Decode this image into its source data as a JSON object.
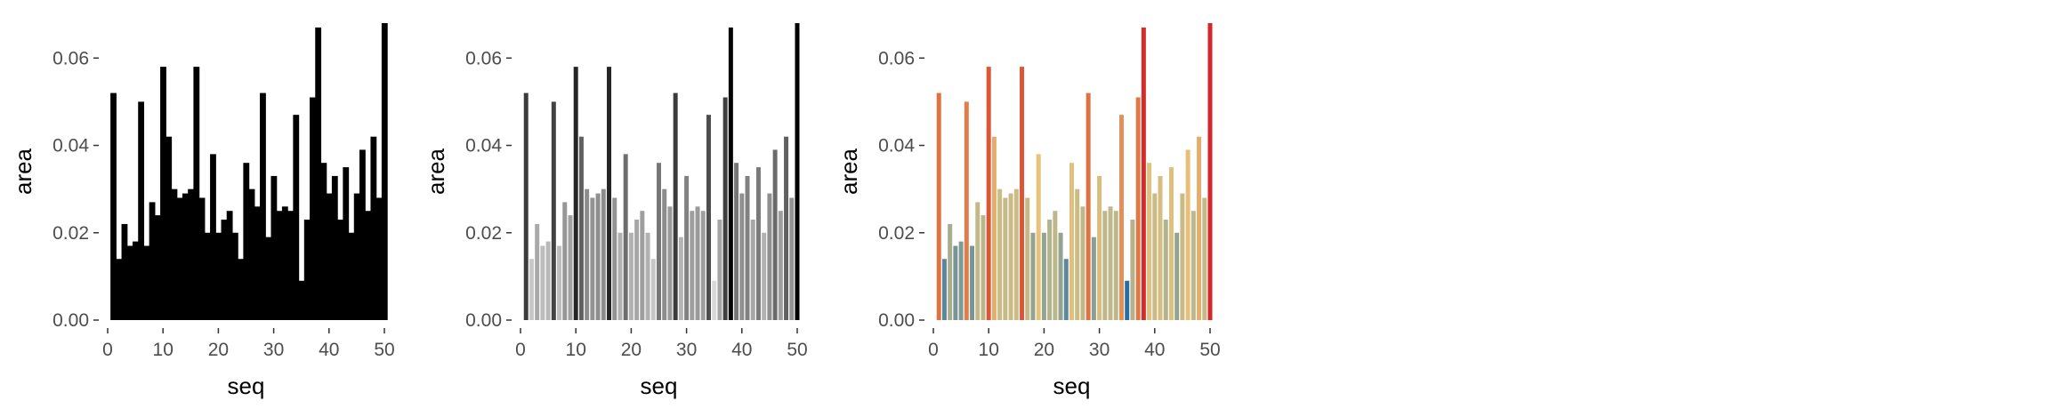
{
  "chart_data": [
    {
      "type": "bar",
      "panel": "solid",
      "xlabel": "seq",
      "ylabel": "area",
      "xlim": [
        0,
        50
      ],
      "ylim": [
        0,
        0.068
      ],
      "x_ticks": [
        "0",
        "10",
        "20",
        "30",
        "40",
        "50"
      ],
      "y_ticks": [
        "0.00",
        "0.02",
        "0.04",
        "0.06"
      ],
      "fill": "#000000",
      "bar_width": 1.0,
      "grid": false,
      "x": [
        1,
        2,
        3,
        4,
        5,
        6,
        7,
        8,
        9,
        10,
        11,
        12,
        13,
        14,
        15,
        16,
        17,
        18,
        19,
        20,
        21,
        22,
        23,
        24,
        25,
        26,
        27,
        28,
        29,
        30,
        31,
        32,
        33,
        34,
        35,
        36,
        37,
        38,
        39,
        40,
        41,
        42,
        43,
        44,
        45,
        46,
        47,
        48,
        49,
        50
      ],
      "values": [
        0.052,
        0.014,
        0.022,
        0.017,
        0.018,
        0.05,
        0.017,
        0.027,
        0.024,
        0.058,
        0.042,
        0.03,
        0.028,
        0.029,
        0.03,
        0.058,
        0.028,
        0.02,
        0.038,
        0.02,
        0.023,
        0.025,
        0.02,
        0.014,
        0.036,
        0.03,
        0.026,
        0.052,
        0.019,
        0.033,
        0.025,
        0.026,
        0.025,
        0.047,
        0.009,
        0.023,
        0.051,
        0.067,
        0.036,
        0.029,
        0.033,
        0.023,
        0.035,
        0.02,
        0.029,
        0.039,
        0.025,
        0.042,
        0.028,
        0.068
      ]
    },
    {
      "type": "bar",
      "panel": "grayscale",
      "xlabel": "seq",
      "ylabel": "area",
      "xlim": [
        0,
        50
      ],
      "ylim": [
        0,
        0.068
      ],
      "x_ticks": [
        "0",
        "10",
        "20",
        "30",
        "40",
        "50"
      ],
      "y_ticks": [
        "0.00",
        "0.02",
        "0.04",
        "0.06"
      ],
      "fill_scale": [
        "#d9d9d9",
        "#000000"
      ],
      "bar_width": 0.8,
      "grid": false,
      "x": [
        1,
        2,
        3,
        4,
        5,
        6,
        7,
        8,
        9,
        10,
        11,
        12,
        13,
        14,
        15,
        16,
        17,
        18,
        19,
        20,
        21,
        22,
        23,
        24,
        25,
        26,
        27,
        28,
        29,
        30,
        31,
        32,
        33,
        34,
        35,
        36,
        37,
        38,
        39,
        40,
        41,
        42,
        43,
        44,
        45,
        46,
        47,
        48,
        49,
        50
      ],
      "values": [
        0.052,
        0.014,
        0.022,
        0.017,
        0.018,
        0.05,
        0.017,
        0.027,
        0.024,
        0.058,
        0.042,
        0.03,
        0.028,
        0.029,
        0.03,
        0.058,
        0.028,
        0.02,
        0.038,
        0.02,
        0.023,
        0.025,
        0.02,
        0.014,
        0.036,
        0.03,
        0.026,
        0.052,
        0.019,
        0.033,
        0.025,
        0.026,
        0.025,
        0.047,
        0.009,
        0.023,
        0.051,
        0.067,
        0.036,
        0.029,
        0.033,
        0.023,
        0.035,
        0.02,
        0.029,
        0.039,
        0.025,
        0.042,
        0.028,
        0.068
      ]
    },
    {
      "type": "bar",
      "panel": "diverging",
      "xlabel": "seq",
      "ylabel": "area",
      "xlim": [
        0,
        50
      ],
      "ylim": [
        0,
        0.068
      ],
      "x_ticks": [
        "0",
        "10",
        "20",
        "30",
        "40",
        "50"
      ],
      "y_ticks": [
        "0.00",
        "0.02",
        "0.04",
        "0.06"
      ],
      "fill_scale": [
        "#2c6da0",
        "#b9b68c",
        "#e8c27a",
        "#dd6b3d",
        "#d62728"
      ],
      "bar_width": 0.8,
      "grid": false,
      "x": [
        1,
        2,
        3,
        4,
        5,
        6,
        7,
        8,
        9,
        10,
        11,
        12,
        13,
        14,
        15,
        16,
        17,
        18,
        19,
        20,
        21,
        22,
        23,
        24,
        25,
        26,
        27,
        28,
        29,
        30,
        31,
        32,
        33,
        34,
        35,
        36,
        37,
        38,
        39,
        40,
        41,
        42,
        43,
        44,
        45,
        46,
        47,
        48,
        49,
        50
      ],
      "values": [
        0.052,
        0.014,
        0.022,
        0.017,
        0.018,
        0.05,
        0.017,
        0.027,
        0.024,
        0.058,
        0.042,
        0.03,
        0.028,
        0.029,
        0.03,
        0.058,
        0.028,
        0.02,
        0.038,
        0.02,
        0.023,
        0.025,
        0.02,
        0.014,
        0.036,
        0.03,
        0.026,
        0.052,
        0.019,
        0.033,
        0.025,
        0.026,
        0.025,
        0.047,
        0.009,
        0.023,
        0.051,
        0.067,
        0.036,
        0.029,
        0.033,
        0.023,
        0.035,
        0.02,
        0.029,
        0.039,
        0.025,
        0.042,
        0.028,
        0.068
      ]
    }
  ]
}
